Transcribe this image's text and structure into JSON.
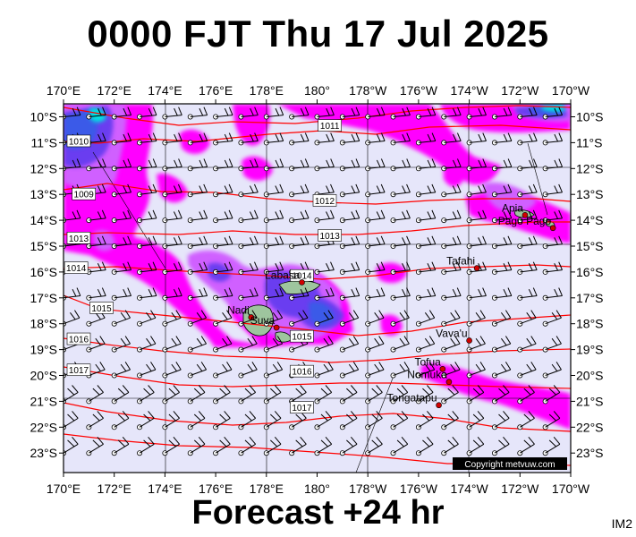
{
  "title": "0000 FJT Thu 17 Jul 2025",
  "footer": "Forecast +24 hr",
  "tag": "IM2",
  "copyright": "Copyright metvuw.com",
  "lon_labels": [
    "170°E",
    "172°E",
    "174°E",
    "176°E",
    "178°E",
    "180°",
    "178°W",
    "176°W",
    "174°W",
    "172°W",
    "170°W"
  ],
  "lat_labels": [
    "10°S",
    "11°S",
    "12°S",
    "13°S",
    "14°S",
    "15°S",
    "16°S",
    "17°S",
    "18°S",
    "19°S",
    "20°S",
    "21°S",
    "22°S",
    "23°S"
  ],
  "places": [
    {
      "name": "Apia",
      "lon": -171.8,
      "lat": -13.8
    },
    {
      "name": "Pago Pago",
      "lon": -170.7,
      "lat": -14.3
    },
    {
      "name": "Tafahi",
      "lon": -173.7,
      "lat": -15.85
    },
    {
      "name": "Labasa",
      "lon": 179.4,
      "lat": -16.4
    },
    {
      "name": "Nadi",
      "lon": 177.4,
      "lat": -17.75
    },
    {
      "name": "Suva",
      "lon": 178.4,
      "lat": -18.15
    },
    {
      "name": "Vava'u",
      "lon": -174.0,
      "lat": -18.65
    },
    {
      "name": "Tofua",
      "lon": -175.05,
      "lat": -19.75
    },
    {
      "name": "Nomuka",
      "lon": -174.8,
      "lat": -20.25
    },
    {
      "name": "Tongatapu",
      "lon": -175.2,
      "lat": -21.15
    }
  ],
  "isobar_labels": [
    {
      "text": "1011",
      "lon": -179.5,
      "lat": -10.35
    },
    {
      "text": "1010",
      "lon": 170.6,
      "lat": -10.95
    },
    {
      "text": "1009",
      "lon": 170.8,
      "lat": -13.0
    },
    {
      "text": "1012",
      "lon": -179.7,
      "lat": -13.25
    },
    {
      "text": "1013",
      "lon": 170.6,
      "lat": -14.7
    },
    {
      "text": "1013",
      "lon": -179.5,
      "lat": -14.6
    },
    {
      "text": "1014",
      "lon": 170.5,
      "lat": -15.85
    },
    {
      "text": "1014",
      "lon": 179.4,
      "lat": -16.15
    },
    {
      "text": "1015",
      "lon": 171.5,
      "lat": -17.4
    },
    {
      "text": "1015",
      "lon": 179.4,
      "lat": -18.5
    },
    {
      "text": "1016",
      "lon": 170.6,
      "lat": -18.6
    },
    {
      "text": "1016",
      "lon": 179.4,
      "lat": -19.85
    },
    {
      "text": "1017",
      "lon": 170.6,
      "lat": -19.8
    },
    {
      "text": "1017",
      "lon": 179.4,
      "lat": -21.25
    }
  ],
  "colors": {
    "background": "#e6e6fa",
    "isobar": "#ff0000",
    "rain_light": "#ff00ff",
    "rain_moderate": "#d060ff",
    "rain_heavy": "#6a3cf0",
    "rain_veryheavy": "#3a5ae8",
    "rain_extreme": "#00e0e0",
    "land": "#9ec59e",
    "town": "#d00000"
  }
}
